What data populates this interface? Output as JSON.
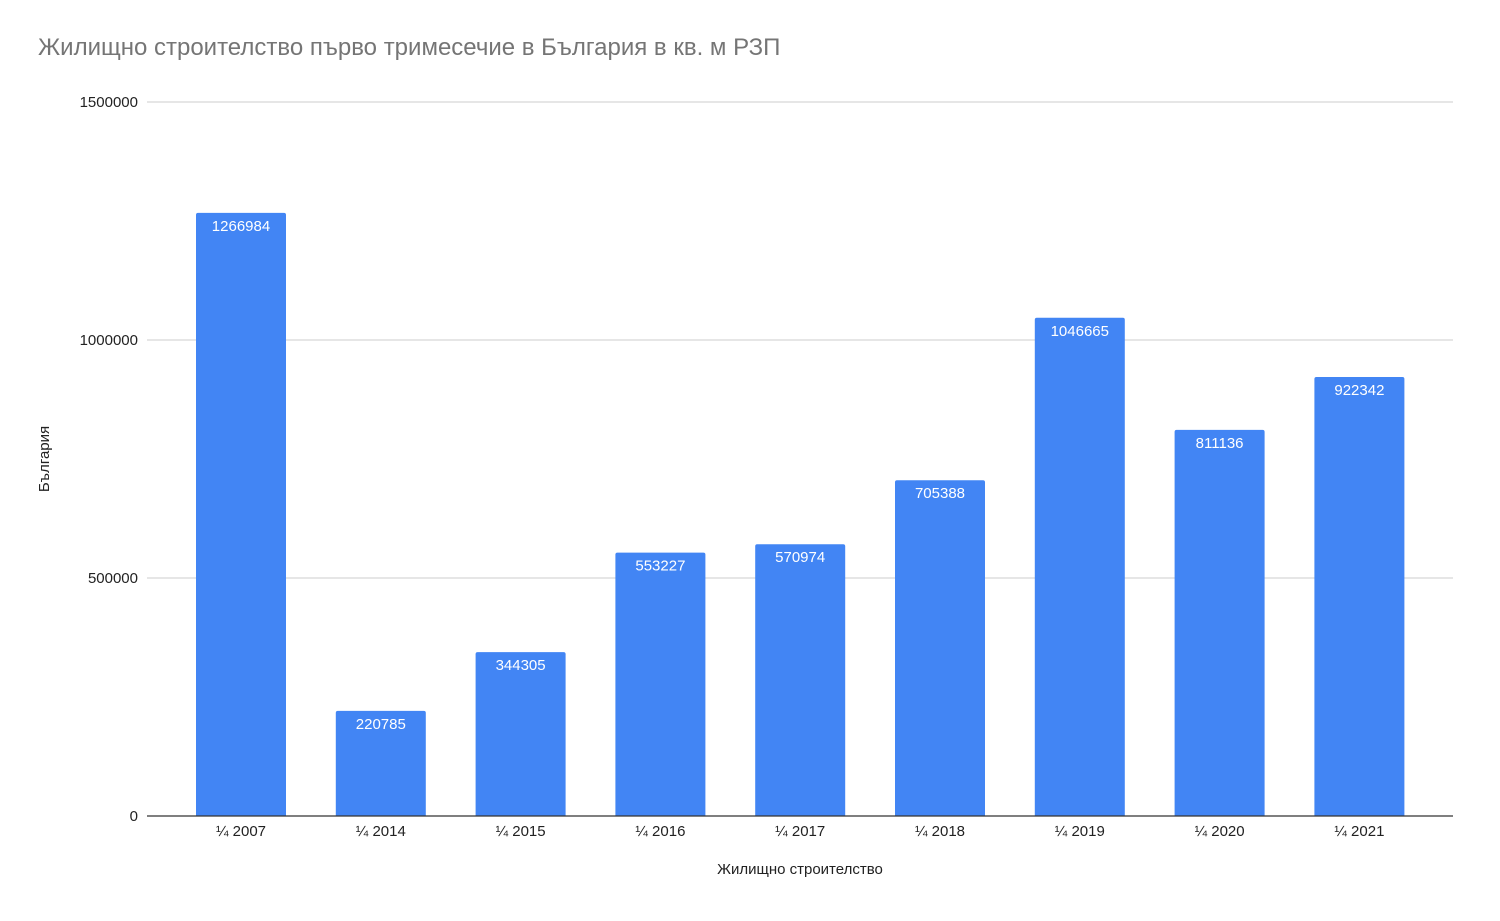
{
  "chart_data": {
    "type": "bar",
    "title": "Жилищно строителство първо тримесечие в България в кв. м РЗП",
    "xlabel": "Жилищно строителство",
    "ylabel": "България",
    "categories": [
      "¼ 2007",
      "¼ 2014",
      "¼ 2015",
      "¼ 2016",
      "¼ 2017",
      "¼ 2018",
      "¼ 2019",
      "¼ 2020",
      "¼ 2021"
    ],
    "series": [
      {
        "values": [
          1266984,
          220785,
          344305,
          553227,
          570974,
          705388,
          1046665,
          811136,
          922342
        ]
      }
    ],
    "data_labels": [
      "1266984",
      "220785",
      "344305",
      "553227",
      "570974",
      "705388",
      "1046665",
      "811136",
      "922342"
    ],
    "ylim": [
      0,
      1500000
    ],
    "yticks": [
      0,
      500000,
      1000000,
      1500000
    ],
    "ytick_labels": [
      "0",
      "500000",
      "1000000",
      "1500000"
    ],
    "grid": true,
    "legend": "none",
    "colors": {
      "bar": "#4285f4",
      "grid": "#cccccc",
      "axis": "#333333",
      "title": "#757575",
      "text": "#222222",
      "data_label": "#ffffff"
    }
  }
}
